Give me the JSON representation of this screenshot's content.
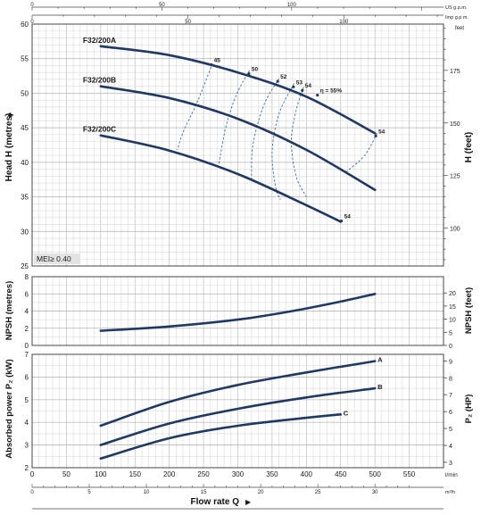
{
  "colors": {
    "curve": "#1f3864",
    "grid": "#b3b3b3",
    "grid_minor": "#d9d9d9",
    "frame": "#444444",
    "mei_bg": "#e3e3e3"
  },
  "axes": {
    "top_unit_1": "US g.p.m.",
    "top_unit_2": "Imp g.p.m.",
    "head_left": "Head H (metres)",
    "head_right": "H (feet)",
    "head_right_unit": "feet",
    "npsh_left": "NPSH (metres)",
    "npsh_right": "NPSH (feet)",
    "power_left": "Absorbed power P₂ (kW)",
    "power_right": "P₂ (HP)",
    "flow_lmin_unit": "l/min",
    "flow_m3h_unit": "m³/h",
    "flow_label": "Flow rate Q"
  },
  "mei_label": "MEI≥ 0.40",
  "chart_data": [
    {
      "type": "line",
      "panel": "head",
      "xlabel": "Flow rate Q",
      "ylabel": "Head H (metres)",
      "ylabel_right": "H (feet)",
      "xunit": "l/min",
      "xlim": [
        0,
        600
      ],
      "ylim": [
        25,
        60
      ],
      "ylim_right_feet": [
        82,
        197
      ],
      "x_ticks": [
        0,
        50,
        100,
        150,
        200,
        250,
        300,
        350,
        400,
        450,
        500,
        550
      ],
      "y_ticks": [
        25,
        30,
        35,
        40,
        45,
        50,
        55,
        60
      ],
      "y_ticks_right": [
        100,
        125,
        150,
        175
      ],
      "x_ticks_m3h": [
        0,
        5,
        10,
        15,
        20,
        25,
        30
      ],
      "x_ticks_usgpm": [
        0,
        50,
        100
      ],
      "x_ticks_impgpm": [
        0,
        50,
        100
      ],
      "series": [
        {
          "name": "F32/200A",
          "x": [
            100,
            200,
            300,
            400,
            500
          ],
          "y": [
            56.8,
            55.5,
            53.0,
            49.5,
            44.2
          ]
        },
        {
          "name": "F32/200B",
          "x": [
            100,
            200,
            300,
            400,
            500
          ],
          "y": [
            51.0,
            49.3,
            46.3,
            41.8,
            36.0
          ]
        },
        {
          "name": "F32/200C",
          "x": [
            100,
            200,
            300,
            400,
            450
          ],
          "y": [
            43.9,
            41.7,
            38.3,
            33.8,
            31.4
          ]
        }
      ],
      "efficiency_labels": [
        {
          "text": "45",
          "x": 265,
          "y": 54.5
        },
        {
          "text": "50",
          "x": 320,
          "y": 53.2
        },
        {
          "text": "52",
          "x": 362,
          "y": 52.1
        },
        {
          "text": "53",
          "x": 385,
          "y": 51.3
        },
        {
          "text": "54",
          "x": 398,
          "y": 50.8
        },
        {
          "text": "η = 55%",
          "x": 420,
          "y": 50.1
        },
        {
          "text": "54",
          "x": 505,
          "y": 44.2
        },
        {
          "text": "54",
          "x": 455,
          "y": 31.9
        }
      ],
      "efficiency_contours": [
        [
          [
            263,
            54.3
          ],
          [
            242,
            49.0
          ],
          [
            220,
            44.3
          ],
          [
            212,
            41.8
          ]
        ],
        [
          [
            317,
            53.3
          ],
          [
            298,
            49.8
          ],
          [
            283,
            45.3
          ],
          [
            272,
            39.6
          ]
        ],
        [
          [
            360,
            52.1
          ],
          [
            338,
            48.3
          ],
          [
            322,
            42.5
          ],
          [
            320,
            37.6
          ]
        ],
        [
          [
            382,
            51.4
          ],
          [
            360,
            47.0
          ],
          [
            350,
            41.5
          ],
          [
            355,
            36.5
          ],
          [
            362,
            34.6
          ]
        ],
        [
          [
            396,
            50.9
          ],
          [
            385,
            47.5
          ],
          [
            378,
            43.0
          ],
          [
            385,
            38.0
          ],
          [
            400,
            35.0
          ]
        ],
        [
          [
            503,
            44.2
          ],
          [
            485,
            41.0
          ],
          [
            458,
            38.6
          ]
        ]
      ]
    },
    {
      "type": "line",
      "panel": "npsh",
      "ylabel": "NPSH (metres)",
      "ylabel_right": "NPSH (feet)",
      "xlim": [
        0,
        600
      ],
      "ylim": [
        0,
        8
      ],
      "ylim_right_feet": [
        0,
        26.2
      ],
      "y_ticks": [
        0,
        2,
        4,
        6,
        8
      ],
      "y_ticks_right": [
        0,
        5,
        10,
        15,
        20
      ],
      "series": [
        {
          "name": "",
          "x": [
            100,
            200,
            300,
            350,
            400,
            450,
            500
          ],
          "y": [
            1.7,
            2.2,
            3.0,
            3.6,
            4.3,
            5.1,
            6.0
          ]
        }
      ]
    },
    {
      "type": "line",
      "panel": "power",
      "ylabel": "Absorbed power P₂ (kW)",
      "ylabel_right": "P₂ (HP)",
      "xlim": [
        0,
        600
      ],
      "ylim": [
        2,
        7
      ],
      "ylim_right_hp": [
        2.68,
        9.39
      ],
      "y_ticks": [
        2,
        3,
        4,
        5,
        6,
        7
      ],
      "y_ticks_right": [
        3,
        4,
        5,
        6,
        7,
        8,
        9
      ],
      "series": [
        {
          "name": "A",
          "x": [
            100,
            200,
            300,
            400,
            500
          ],
          "y": [
            3.85,
            4.9,
            5.65,
            6.2,
            6.7
          ]
        },
        {
          "name": "B",
          "x": [
            100,
            200,
            300,
            400,
            500
          ],
          "y": [
            3.0,
            3.95,
            4.6,
            5.1,
            5.5
          ]
        },
        {
          "name": "C",
          "x": [
            100,
            200,
            300,
            400,
            450
          ],
          "y": [
            2.4,
            3.3,
            3.85,
            4.2,
            4.35
          ]
        }
      ]
    }
  ]
}
